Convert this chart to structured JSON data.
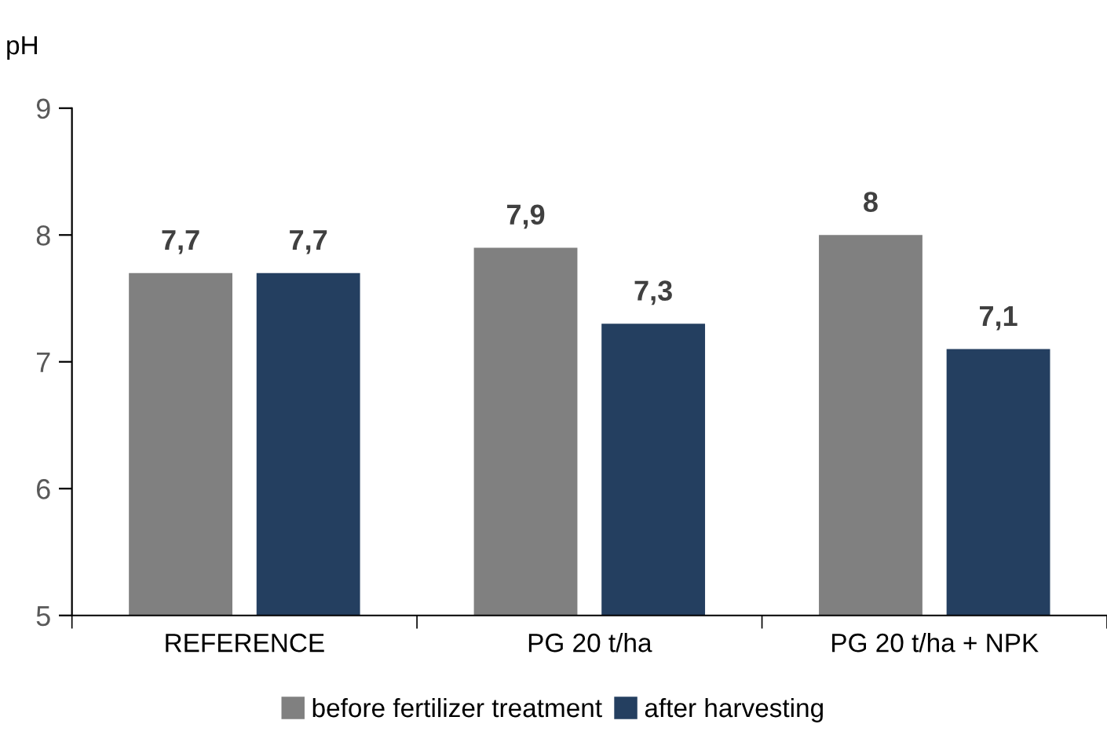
{
  "chart_data": {
    "type": "bar",
    "ylabel": "pH",
    "categories": [
      "REFERENCE",
      "PG 20 t/ha",
      "PG 20 t/ha + NPK"
    ],
    "series": [
      {
        "name": "before fertilizer treatment",
        "color": "#808080",
        "values": [
          7.7,
          7.9,
          8
        ],
        "value_labels": [
          "7,7",
          "7,9",
          "8"
        ]
      },
      {
        "name": "after harvesting",
        "color": "#243f60",
        "values": [
          7.7,
          7.3,
          7.1
        ],
        "value_labels": [
          "7,7",
          "7,3",
          "7,1"
        ]
      }
    ],
    "ylim": [
      5,
      9
    ],
    "yticks": [
      5,
      6,
      7,
      8,
      9
    ],
    "grid": false,
    "legend": "bottom"
  }
}
